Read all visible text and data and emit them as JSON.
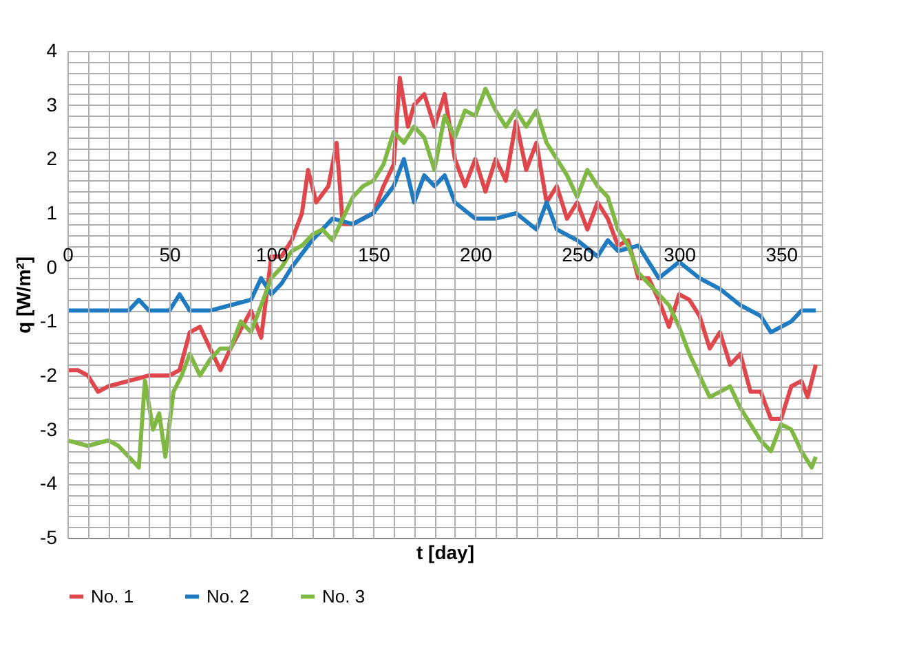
{
  "chart_data": {
    "type": "line",
    "xlabel": "t [day]",
    "ylabel": "q [W/m²]",
    "xlim": [
      0,
      370
    ],
    "ylim": [
      -5,
      4
    ],
    "xticks": [
      0,
      {
        "value": 10,
        "label": null
      },
      {
        "value": 20,
        "label": null
      },
      {
        "value": 30,
        "label": null
      },
      {
        "value": 40,
        "label": null
      },
      50,
      {
        "value": 60,
        "label": null
      },
      {
        "value": 70,
        "label": null
      },
      {
        "value": 80,
        "label": null
      },
      {
        "value": 90,
        "label": null
      },
      100,
      {
        "value": 110,
        "label": null
      },
      {
        "value": 120,
        "label": null
      },
      {
        "value": 130,
        "label": null
      },
      {
        "value": 140,
        "label": null
      },
      150,
      {
        "value": 160,
        "label": null
      },
      {
        "value": 170,
        "label": null
      },
      {
        "value": 180,
        "label": null
      },
      {
        "value": 190,
        "label": null
      },
      200,
      {
        "value": 210,
        "label": null
      },
      {
        "value": 220,
        "label": null
      },
      {
        "value": 230,
        "label": null
      },
      {
        "value": 240,
        "label": null
      },
      250,
      {
        "value": 260,
        "label": null
      },
      {
        "value": 270,
        "label": null
      },
      {
        "value": 280,
        "label": null
      },
      {
        "value": 290,
        "label": null
      },
      300,
      {
        "value": 310,
        "label": null
      },
      {
        "value": 320,
        "label": null
      },
      {
        "value": 330,
        "label": null
      },
      {
        "value": 340,
        "label": null
      },
      350,
      {
        "value": 360,
        "label": null
      },
      {
        "value": 370,
        "label": null
      }
    ],
    "yticks": [
      -5,
      {
        "value": -4.8,
        "label": null
      },
      {
        "value": -4.6,
        "label": null
      },
      {
        "value": -4.4,
        "label": null
      },
      {
        "value": -4.2,
        "label": null
      },
      -4,
      {
        "value": -3.8,
        "label": null
      },
      {
        "value": -3.6,
        "label": null
      },
      {
        "value": -3.4,
        "label": null
      },
      {
        "value": -3.2,
        "label": null
      },
      -3,
      {
        "value": -2.8,
        "label": null
      },
      {
        "value": -2.6,
        "label": null
      },
      {
        "value": -2.4,
        "label": null
      },
      {
        "value": -2.2,
        "label": null
      },
      -2,
      {
        "value": -1.8,
        "label": null
      },
      {
        "value": -1.6,
        "label": null
      },
      {
        "value": -1.4,
        "label": null
      },
      {
        "value": -1.2,
        "label": null
      },
      -1,
      {
        "value": -0.8,
        "label": null
      },
      {
        "value": -0.6,
        "label": null
      },
      {
        "value": -0.4,
        "label": null
      },
      {
        "value": -0.2,
        "label": null
      },
      0,
      {
        "value": 0.2,
        "label": null
      },
      {
        "value": 0.4,
        "label": null
      },
      {
        "value": 0.6,
        "label": null
      },
      {
        "value": 0.8,
        "label": null
      },
      1,
      {
        "value": 1.2,
        "label": null
      },
      {
        "value": 1.4,
        "label": null
      },
      {
        "value": 1.6,
        "label": null
      },
      {
        "value": 1.8,
        "label": null
      },
      2,
      {
        "value": 2.2,
        "label": null
      },
      {
        "value": 2.4,
        "label": null
      },
      {
        "value": 2.6,
        "label": null
      },
      {
        "value": 2.8,
        "label": null
      },
      3,
      {
        "value": 3.2,
        "label": null
      },
      {
        "value": 3.4,
        "label": null
      },
      {
        "value": 3.6,
        "label": null
      },
      {
        "value": 3.8,
        "label": null
      },
      4
    ],
    "grid": true,
    "legend": "bottom",
    "marker": "none",
    "line_style": "solid",
    "series": [
      {
        "name": "No. 1",
        "color": "#e0474c",
        "x": [
          0,
          5,
          10,
          15,
          20,
          30,
          40,
          50,
          55,
          60,
          65,
          70,
          75,
          80,
          90,
          95,
          100,
          105,
          110,
          115,
          118,
          122,
          128,
          132,
          135,
          140,
          150,
          155,
          160,
          163,
          167,
          170,
          175,
          180,
          185,
          190,
          195,
          200,
          205,
          210,
          215,
          220,
          225,
          230,
          235,
          240,
          245,
          250,
          255,
          260,
          265,
          270,
          275,
          280,
          285,
          290,
          295,
          300,
          305,
          310,
          315,
          320,
          325,
          330,
          335,
          340,
          345,
          350,
          355,
          360,
          363,
          367
        ],
        "values": [
          -1.9,
          -1.9,
          -2.0,
          -2.3,
          -2.2,
          -2.1,
          -2.0,
          -2.0,
          -1.9,
          -1.2,
          -1.1,
          -1.5,
          -1.9,
          -1.5,
          -0.8,
          -1.3,
          0.2,
          0.2,
          0.5,
          1.0,
          1.8,
          1.2,
          1.5,
          2.3,
          0.8,
          0.8,
          1.0,
          1.5,
          1.9,
          3.5,
          2.6,
          3.0,
          3.2,
          2.6,
          3.2,
          2.0,
          1.5,
          2.0,
          1.4,
          2.0,
          1.6,
          2.7,
          1.8,
          2.3,
          1.2,
          1.5,
          0.9,
          1.2,
          0.7,
          1.2,
          0.9,
          0.4,
          0.5,
          -0.2,
          -0.2,
          -0.6,
          -1.1,
          -0.5,
          -0.6,
          -0.9,
          -1.5,
          -1.2,
          -1.8,
          -1.6,
          -2.3,
          -2.3,
          -2.8,
          -2.8,
          -2.2,
          -2.1,
          -2.4,
          -1.8
        ]
      },
      {
        "name": "No. 2",
        "color": "#1f7bc1",
        "x": [
          0,
          10,
          20,
          30,
          35,
          40,
          50,
          55,
          60,
          70,
          80,
          90,
          95,
          100,
          105,
          110,
          120,
          130,
          140,
          150,
          160,
          165,
          170,
          175,
          180,
          185,
          190,
          200,
          210,
          220,
          230,
          235,
          240,
          250,
          260,
          265,
          270,
          280,
          290,
          300,
          310,
          320,
          330,
          340,
          345,
          355,
          360,
          367
        ],
        "values": [
          -0.8,
          -0.8,
          -0.8,
          -0.8,
          -0.6,
          -0.8,
          -0.8,
          -0.5,
          -0.8,
          -0.8,
          -0.7,
          -0.6,
          -0.2,
          -0.5,
          -0.3,
          0.0,
          0.5,
          0.9,
          0.8,
          1.0,
          1.5,
          2.0,
          1.2,
          1.7,
          1.5,
          1.7,
          1.2,
          0.9,
          0.9,
          1.0,
          0.7,
          1.2,
          0.7,
          0.5,
          0.2,
          0.5,
          0.3,
          0.4,
          -0.2,
          0.1,
          -0.2,
          -0.4,
          -0.7,
          -0.9,
          -1.2,
          -1.0,
          -0.8,
          -0.8
        ]
      },
      {
        "name": "No. 3",
        "color": "#7fb843",
        "x": [
          0,
          10,
          20,
          25,
          30,
          35,
          38,
          42,
          45,
          48,
          52,
          56,
          60,
          65,
          70,
          75,
          80,
          85,
          90,
          95,
          100,
          105,
          110,
          115,
          120,
          125,
          130,
          135,
          140,
          145,
          150,
          155,
          160,
          165,
          170,
          175,
          180,
          185,
          190,
          195,
          200,
          205,
          210,
          215,
          220,
          225,
          230,
          235,
          240,
          245,
          250,
          255,
          260,
          265,
          270,
          275,
          280,
          285,
          290,
          295,
          300,
          305,
          310,
          315,
          320,
          325,
          330,
          335,
          340,
          345,
          350,
          355,
          360,
          365,
          367
        ],
        "values": [
          -3.2,
          -3.3,
          -3.2,
          -3.3,
          -3.5,
          -3.7,
          -2.1,
          -3.0,
          -2.7,
          -3.5,
          -2.3,
          -2.0,
          -1.6,
          -2.0,
          -1.7,
          -1.5,
          -1.5,
          -1.0,
          -1.2,
          -0.7,
          -0.2,
          0.0,
          0.3,
          0.4,
          0.6,
          0.7,
          0.5,
          0.9,
          1.3,
          1.5,
          1.6,
          1.9,
          2.5,
          2.3,
          2.6,
          2.4,
          1.8,
          2.8,
          2.4,
          2.9,
          2.8,
          3.3,
          2.9,
          2.6,
          2.9,
          2.6,
          2.9,
          2.3,
          2.0,
          1.7,
          1.3,
          1.8,
          1.5,
          1.3,
          0.7,
          0.4,
          -0.1,
          -0.3,
          -0.5,
          -0.7,
          -1.1,
          -1.6,
          -2.0,
          -2.4,
          -2.3,
          -2.2,
          -2.6,
          -2.9,
          -3.2,
          -3.4,
          -2.9,
          -3.0,
          -3.4,
          -3.7,
          -3.5
        ]
      }
    ]
  }
}
